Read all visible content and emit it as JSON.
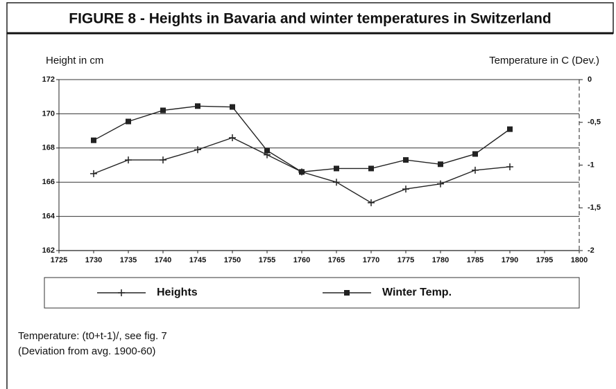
{
  "chart_data": {
    "type": "line",
    "title": "FIGURE 8 - Heights in Bavaria and winter temperatures in Switzerland",
    "y_label": "Height in cm",
    "y2_label": "Temperature in C (Dev.)",
    "x": [
      1730,
      1735,
      1740,
      1745,
      1750,
      1755,
      1760,
      1765,
      1770,
      1775,
      1780,
      1785,
      1790
    ],
    "series": [
      {
        "name": "Heights",
        "color": "#222222",
        "marker": "plus",
        "values": [
          166.5,
          167.3,
          167.3,
          167.9,
          168.6,
          167.6,
          166.6,
          166.0,
          164.8,
          165.6,
          165.9,
          166.7,
          166.9
        ]
      },
      {
        "name": "Winter Temp.",
        "color": "#222222",
        "marker": "square",
        "axis": "y2",
        "values": [
          -0.71,
          -0.49,
          -0.36,
          -0.31,
          -0.32,
          -0.83,
          -1.08,
          -1.04,
          -1.04,
          -0.94,
          -0.99,
          -0.87,
          -0.58
        ]
      }
    ],
    "xlim": [
      1725,
      1800
    ],
    "xticks": [
      1725,
      1730,
      1735,
      1740,
      1745,
      1750,
      1755,
      1760,
      1765,
      1770,
      1775,
      1780,
      1785,
      1790,
      1795,
      1800
    ],
    "ylim": [
      162,
      172
    ],
    "yticks": [
      162,
      164,
      166,
      168,
      170,
      172
    ],
    "y2lim": [
      -2,
      0
    ],
    "y2ticks": [
      0,
      {
        "value": -0.5,
        "label": "-0,5"
      },
      -1,
      {
        "value": -1.5,
        "label": "-1,5"
      },
      -2
    ],
    "grid": true,
    "notes": [
      "Temperature: (t0+t-1)/, see fig. 7",
      "(Deviation from avg. 1900-60)"
    ]
  }
}
